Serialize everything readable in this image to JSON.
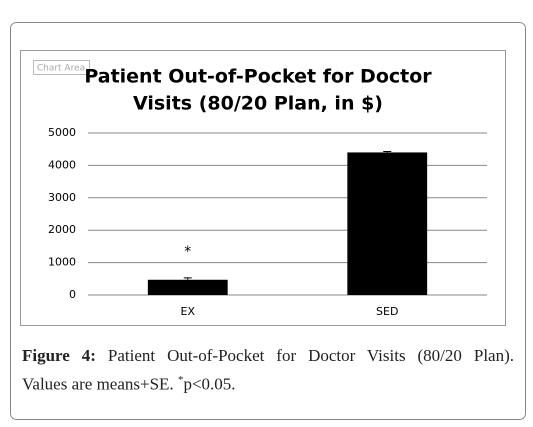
{
  "chart_data": {
    "type": "bar",
    "title": [
      "Patient Out-of-Pocket for Doctor",
      "Visits (80/20 Plan, in $)"
    ],
    "chart_area_label": "Chart Area",
    "categories": [
      "EX",
      "SED"
    ],
    "values": [
      470,
      4400
    ],
    "errors": [
      60,
      30
    ],
    "color": "#000000",
    "ylim": [
      0,
      5000
    ],
    "yticks": [
      0,
      1000,
      2000,
      3000,
      4000,
      5000
    ],
    "grid": true,
    "annotations": [
      {
        "category": 0,
        "text": "*"
      }
    ]
  },
  "caption": {
    "label": "Figure 4:",
    "line1": "Patient Out-of-Pocket for Doctor Visits (80/20 Plan).",
    "line2": "Values are means+SE.",
    "sup": "*",
    "tail": "p<0.05."
  }
}
